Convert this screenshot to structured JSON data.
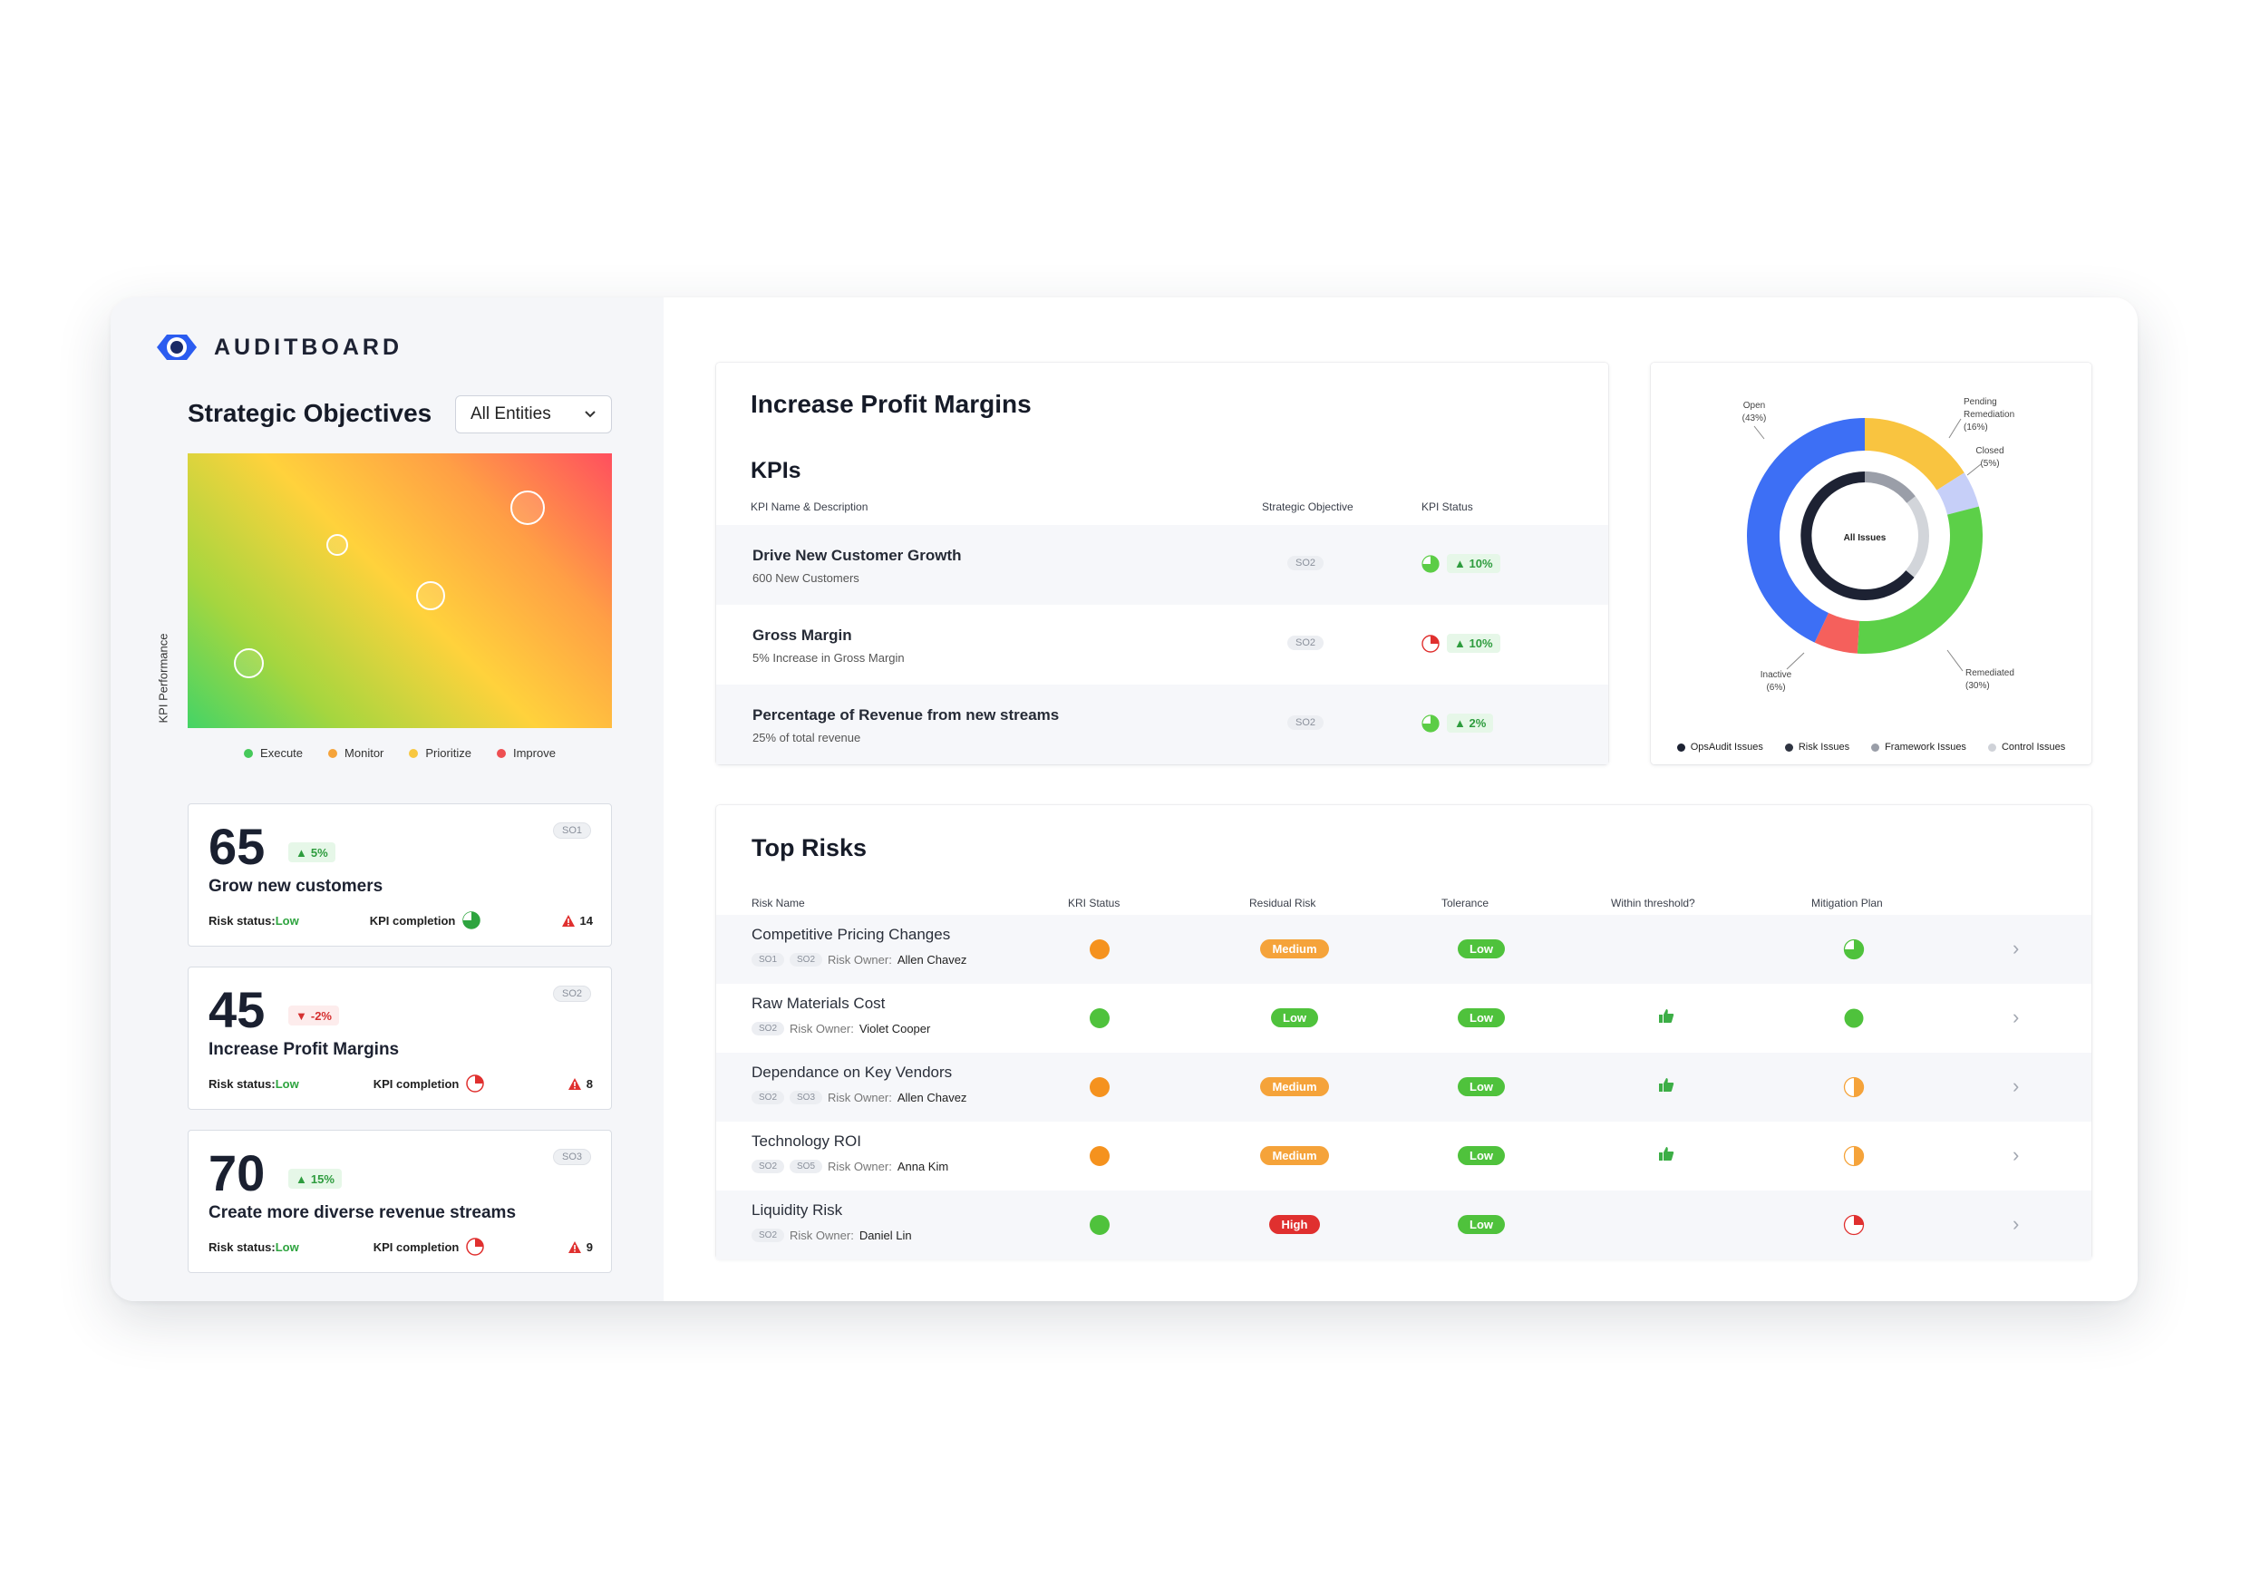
{
  "brand": {
    "name": "AUDITBOARD",
    "color": "#2b5cf0"
  },
  "sidebar": {
    "title": "Strategic Objectives",
    "entity_select": "All Entities",
    "heatmap_ylabel": "KPI Performance",
    "legend": [
      {
        "label": "Execute",
        "color": "#46c95a"
      },
      {
        "label": "Monitor",
        "color": "#f5a33a"
      },
      {
        "label": "Prioritize",
        "color": "#f8c740"
      },
      {
        "label": "Improve",
        "color": "#ee4f52"
      }
    ],
    "objectives": [
      {
        "score": "65",
        "trend": "5%",
        "direction": "up",
        "code": "SO1",
        "name": "Grow new customers",
        "risk_label": "Risk status:",
        "risk_value": "Low",
        "kpi_label": "KPI completion",
        "kpi_icon": "pie-mostly-green",
        "alerts": "14"
      },
      {
        "score": "45",
        "trend": "-2%",
        "direction": "down",
        "code": "SO2",
        "name": "Increase Profit Margins",
        "risk_label": "Risk status:",
        "risk_value": "Low",
        "kpi_label": "KPI completion",
        "kpi_icon": "pie-quarter-red",
        "alerts": "8"
      },
      {
        "score": "70",
        "trend": "15%",
        "direction": "up",
        "code": "SO3",
        "name": "Create more diverse revenue streams",
        "risk_label": "Risk status:",
        "risk_value": "Low",
        "kpi_label": "KPI completion",
        "kpi_icon": "pie-quarter-red",
        "alerts": "9"
      }
    ]
  },
  "kpi_panel": {
    "title": "Increase Profit Margins",
    "subtitle": "KPIs",
    "columns": [
      "KPI Name & Description",
      "Strategic Objective",
      "KPI Status"
    ],
    "rows": [
      {
        "name": "Drive New Customer Growth",
        "desc": "600 New Customers",
        "so": "SO2",
        "status_icon": "pie-three-quarter-green",
        "change": "10%"
      },
      {
        "name": "Gross Margin",
        "desc": "5% Increase in Gross Margin",
        "so": "SO2",
        "status_icon": "pie-quarter-red",
        "change": "10%"
      },
      {
        "name": "Percentage of Revenue from new streams",
        "desc": "25% of total revenue",
        "so": "SO2",
        "status_icon": "pie-three-quarter-green",
        "change": "2%"
      }
    ]
  },
  "issues_panel": {
    "center_label": "All Issues",
    "segments": [
      {
        "label": "Open",
        "pct": "(43%)",
        "value": 43,
        "color": "#3d6ff5"
      },
      {
        "label": "Pending Remediation",
        "pct": "(16%)",
        "value": 16,
        "color": "#f9c440"
      },
      {
        "label": "Closed",
        "pct": "(5%)",
        "value": 5,
        "color": "#c6cff8"
      },
      {
        "label": "Remediated",
        "pct": "(30%)",
        "value": 30,
        "color": "#5cd048"
      },
      {
        "label": "Inactive",
        "pct": "(6%)",
        "value": 6,
        "color": "#f5605c"
      }
    ],
    "legend": [
      {
        "label": "OpsAudit Issues",
        "color": "#1d2233"
      },
      {
        "label": "Risk Issues",
        "color": "#2f3441"
      },
      {
        "label": "Framework Issues",
        "color": "#9a9ea8"
      },
      {
        "label": "Control Issues",
        "color": "#cfd2d8"
      }
    ]
  },
  "risks_panel": {
    "title": "Top Risks",
    "columns": [
      "Risk Name",
      "KRI Status",
      "Residual Risk",
      "Tolerance",
      "Within threshold?",
      "Mitigation Plan"
    ],
    "owner_label": "Risk Owner:",
    "rows": [
      {
        "name": "Competitive Pricing Changes",
        "codes": [
          "SO1",
          "SO2"
        ],
        "owner": "Allen Chavez",
        "kri": "orange",
        "residual": "Medium",
        "tolerance": "Low",
        "threshold": false,
        "mitigation": "pie-three-quarter-green"
      },
      {
        "name": "Raw Materials Cost",
        "codes": [
          "SO2"
        ],
        "owner": "Violet Cooper",
        "kri": "green",
        "residual": "Low",
        "tolerance": "Low",
        "threshold": true,
        "mitigation": "full-green"
      },
      {
        "name": "Dependance on Key Vendors",
        "codes": [
          "SO2",
          "SO3"
        ],
        "owner": "Allen Chavez",
        "kri": "orange",
        "residual": "Medium",
        "tolerance": "Low",
        "threshold": true,
        "mitigation": "half-orange"
      },
      {
        "name": "Technology ROI",
        "codes": [
          "SO2",
          "SO5"
        ],
        "owner": "Anna Kim",
        "kri": "orange",
        "residual": "Medium",
        "tolerance": "Low",
        "threshold": true,
        "mitigation": "half-orange"
      },
      {
        "name": "Liquidity Risk",
        "codes": [
          "SO2"
        ],
        "owner": "Daniel Lin",
        "kri": "green",
        "residual": "High",
        "tolerance": "Low",
        "threshold": false,
        "mitigation": "pie-quarter-red"
      }
    ]
  }
}
